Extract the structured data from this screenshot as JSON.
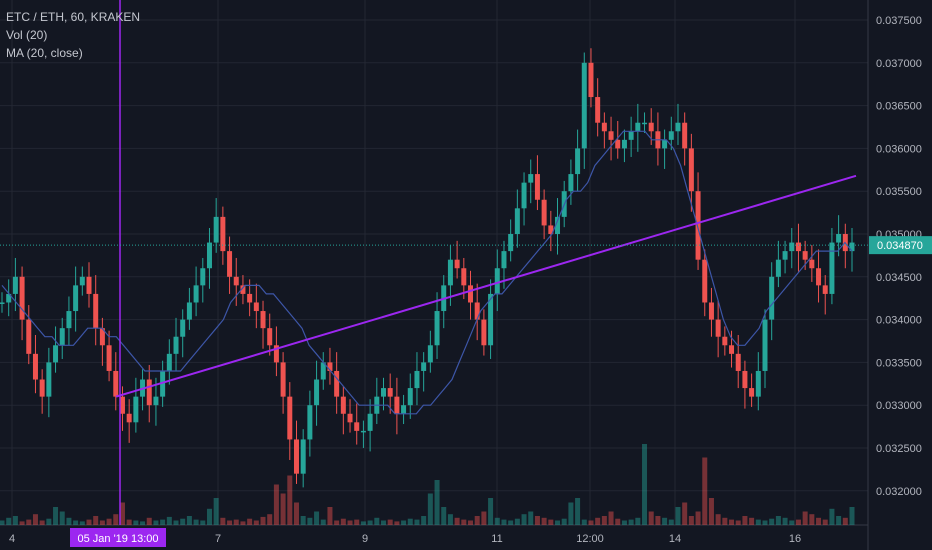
{
  "legend": {
    "symbol_line": "ETC / ETH, 60, KRAKEN",
    "volume_indicator": "Vol (20)",
    "ma_indicator": "MA (20, close)"
  },
  "colors": {
    "background": "#131722",
    "grid": "#232733",
    "up": "#26a69a",
    "down": "#ef5350",
    "ma_line": "#3d56a8",
    "trend_line": "#9c27f0",
    "cursor_line": "#9c27f0",
    "axis_text": "#b2b5be",
    "last_price_bg": "#26a69a"
  },
  "chart_data": {
    "type": "candlestick",
    "pair": "ETC / ETH",
    "interval": "60",
    "exchange": "KRAKEN",
    "y_ticks": [
      "0.037500",
      "0.037000",
      "0.036500",
      "0.036000",
      "0.035500",
      "0.035000",
      "0.034500",
      "0.034000",
      "0.033500",
      "0.033000",
      "0.032500",
      "0.032000"
    ],
    "ylim": [
      0.03155,
      0.03785
    ],
    "x_ticks": [
      "4",
      "7",
      "9",
      "11",
      "12:00",
      "14",
      "16"
    ],
    "last_price": "0.034870",
    "cursor_label": "05 Jan '19 13:00",
    "close_path": [
      0.0342,
      0.0343,
      0.0345,
      0.034,
      0.0336,
      0.0333,
      0.0331,
      0.0335,
      0.0337,
      0.0339,
      0.0341,
      0.0344,
      0.0345,
      0.0343,
      0.0339,
      0.0337,
      0.0334,
      0.0331,
      0.0329,
      0.0328,
      0.0331,
      0.0333,
      0.033,
      0.0331,
      0.0334,
      0.0336,
      0.0338,
      0.034,
      0.0342,
      0.0344,
      0.0346,
      0.0349,
      0.0352,
      0.0348,
      0.0345,
      0.0344,
      0.0343,
      0.0342,
      0.0341,
      0.0339,
      0.0337,
      0.0335,
      0.0331,
      0.0326,
      0.0322,
      0.0326,
      0.033,
      0.0333,
      0.0335,
      0.0334,
      0.0331,
      0.0329,
      0.0328,
      0.0327,
      0.0327,
      0.0329,
      0.0331,
      0.0332,
      0.0331,
      0.0329,
      0.033,
      0.0332,
      0.0334,
      0.0335,
      0.0337,
      0.0341,
      0.0344,
      0.0347,
      0.0346,
      0.0344,
      0.0342,
      0.034,
      0.0337,
      0.0343,
      0.0346,
      0.0348,
      0.035,
      0.0353,
      0.0356,
      0.0357,
      0.0354,
      0.0351,
      0.035,
      0.0352,
      0.0355,
      0.0357,
      0.036,
      0.037,
      0.0366,
      0.0363,
      0.0362,
      0.0361,
      0.036,
      0.0361,
      0.0362,
      0.0363,
      0.0363,
      0.0362,
      0.036,
      0.0361,
      0.0362,
      0.0363,
      0.036,
      0.0355,
      0.0347,
      0.0342,
      0.034,
      0.0338,
      0.0337,
      0.0336,
      0.0334,
      0.0332,
      0.0331,
      0.0334,
      0.034,
      0.0345,
      0.0347,
      0.0348,
      0.0349,
      0.0348,
      0.0347,
      0.0346,
      0.0344,
      0.0343,
      0.0349,
      0.035,
      0.0348,
      0.0349
    ],
    "ma_path": [
      0.0344,
      0.0343,
      0.0342,
      0.0341,
      0.034,
      0.0339,
      0.0338,
      0.0338,
      0.0337,
      0.0337,
      0.0337,
      0.0338,
      0.0339,
      0.0339,
      0.0339,
      0.0338,
      0.0338,
      0.0337,
      0.0336,
      0.0335,
      0.0334,
      0.0334,
      0.0334,
      0.0334,
      0.0334,
      0.0334,
      0.0335,
      0.0336,
      0.0337,
      0.0338,
      0.0339,
      0.034,
      0.0342,
      0.0343,
      0.0344,
      0.0344,
      0.0344,
      0.0343,
      0.0343,
      0.0342,
      0.0341,
      0.034,
      0.0339,
      0.0337,
      0.0336,
      0.0335,
      0.0334,
      0.0333,
      0.0332,
      0.0331,
      0.033,
      0.033,
      0.033,
      0.033,
      0.033,
      0.0329,
      0.0329,
      0.0329,
      0.0329,
      0.033,
      0.033,
      0.0331,
      0.0332,
      0.0333,
      0.0335,
      0.0337,
      0.0339,
      0.0341,
      0.0342,
      0.0343,
      0.0343,
      0.0344,
      0.0345,
      0.0346,
      0.0347,
      0.0348,
      0.0349,
      0.035,
      0.0352,
      0.0354,
      0.0355,
      0.0355,
      0.0356,
      0.0358,
      0.0359,
      0.036,
      0.0361,
      0.0362,
      0.0362,
      0.0362,
      0.0362,
      0.0361,
      0.0361,
      0.0361,
      0.036,
      0.0358,
      0.0355,
      0.0352,
      0.0349,
      0.0346,
      0.0343,
      0.034,
      0.0338,
      0.0337,
      0.0337,
      0.0338,
      0.0339,
      0.0341,
      0.0342,
      0.0343,
      0.0344,
      0.0345,
      0.0346,
      0.0347,
      0.0348,
      0.0348,
      0.0348,
      0.0348,
      0.0349,
      0.0348
    ],
    "volume_path": [
      0.05,
      0.08,
      0.1,
      0.04,
      0.06,
      0.12,
      0.05,
      0.07,
      0.2,
      0.15,
      0.08,
      0.05,
      0.04,
      0.06,
      0.1,
      0.05,
      0.07,
      0.12,
      0.25,
      0.06,
      0.05,
      0.04,
      0.08,
      0.05,
      0.06,
      0.09,
      0.05,
      0.07,
      0.1,
      0.06,
      0.05,
      0.18,
      0.3,
      0.08,
      0.05,
      0.06,
      0.04,
      0.07,
      0.05,
      0.09,
      0.12,
      0.45,
      0.35,
      0.55,
      0.25,
      0.1,
      0.08,
      0.15,
      0.06,
      0.2,
      0.05,
      0.07,
      0.05,
      0.06,
      0.04,
      0.05,
      0.08,
      0.05,
      0.06,
      0.04,
      0.05,
      0.07,
      0.06,
      0.1,
      0.35,
      0.5,
      0.2,
      0.12,
      0.08,
      0.06,
      0.05,
      0.1,
      0.15,
      0.3,
      0.08,
      0.06,
      0.05,
      0.07,
      0.12,
      0.15,
      0.1,
      0.08,
      0.06,
      0.05,
      0.07,
      0.25,
      0.3,
      0.06,
      0.05,
      0.08,
      0.1,
      0.15,
      0.07,
      0.05,
      0.06,
      0.08,
      0.9,
      0.15,
      0.1,
      0.08,
      0.06,
      0.2,
      0.25,
      0.1,
      0.15,
      0.75,
      0.3,
      0.12,
      0.08,
      0.06,
      0.05,
      0.1,
      0.08,
      0.06,
      0.05,
      0.07,
      0.1,
      0.08,
      0.05,
      0.06,
      0.15,
      0.12,
      0.08,
      0.06,
      0.18,
      0.1,
      0.08,
      0.2
    ]
  }
}
